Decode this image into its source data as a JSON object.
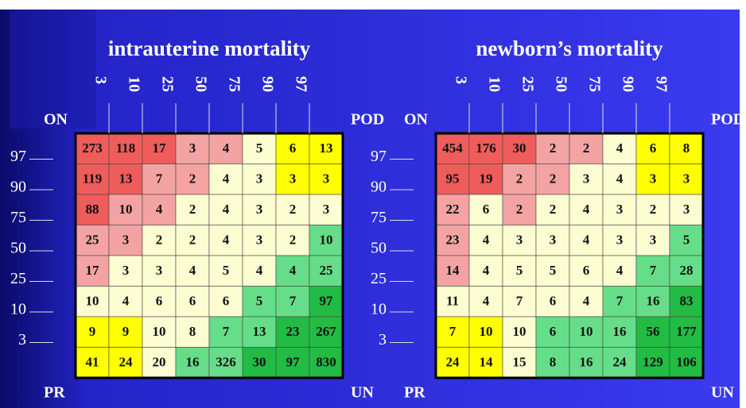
{
  "slide": {
    "panels": [
      {
        "title": "intrauterine mortality",
        "column_labels": [
          "3",
          "10",
          "25",
          "50",
          "75",
          "90",
          "97"
        ],
        "row_labels": [
          "97",
          "90",
          "75",
          "50",
          "25",
          "10",
          "3"
        ],
        "corner_labels": {
          "top_left": "ON",
          "top_right": "POD",
          "bottom_left": "PR",
          "bottom_right": "UN"
        },
        "rows": [
          [
            273,
            118,
            17,
            3,
            4,
            5,
            6,
            13
          ],
          [
            119,
            13,
            7,
            2,
            4,
            3,
            3,
            3
          ],
          [
            88,
            10,
            4,
            2,
            4,
            3,
            2,
            3
          ],
          [
            25,
            3,
            2,
            2,
            4,
            3,
            2,
            10
          ],
          [
            17,
            3,
            3,
            4,
            5,
            4,
            4,
            25
          ],
          [
            10,
            4,
            6,
            6,
            6,
            5,
            7,
            97
          ],
          [
            9,
            9,
            10,
            8,
            7,
            13,
            23,
            267
          ],
          [
            41,
            24,
            20,
            16,
            326,
            30,
            97,
            830
          ]
        ],
        "colors": [
          [
            "#ee5c5c",
            "#ee5c5c",
            "#ee5c5c",
            "#f4a3a3",
            "#f4a3a3",
            "#fdfdd2",
            "#ffff00",
            "#ffff00"
          ],
          [
            "#ee5c5c",
            "#ee5c5c",
            "#f4a3a3",
            "#f4a3a3",
            "#fdfdd2",
            "#fdfdd2",
            "#ffff00",
            "#ffff00"
          ],
          [
            "#ee5c5c",
            "#f4a3a3",
            "#f4a3a3",
            "#fdfdd2",
            "#fdfdd2",
            "#fdfdd2",
            "#fdfdd2",
            "#fdfdd2"
          ],
          [
            "#f4a3a3",
            "#f4a3a3",
            "#fdfdd2",
            "#fdfdd2",
            "#fdfdd2",
            "#fdfdd2",
            "#fdfdd2",
            "#66dd88"
          ],
          [
            "#f4a3a3",
            "#fdfdd2",
            "#fdfdd2",
            "#fdfdd2",
            "#fdfdd2",
            "#fdfdd2",
            "#66dd88",
            "#66dd88"
          ],
          [
            "#fdfdd2",
            "#fdfdd2",
            "#fdfdd2",
            "#fdfdd2",
            "#fdfdd2",
            "#66dd88",
            "#66dd88",
            "#22bb44"
          ],
          [
            "#ffff00",
            "#ffff00",
            "#fdfdd2",
            "#fdfdd2",
            "#66dd88",
            "#66dd88",
            "#22bb44",
            "#22bb44"
          ],
          [
            "#ffff00",
            "#ffff00",
            "#fdfdd2",
            "#66dd88",
            "#66dd88",
            "#22bb44",
            "#22bb44",
            "#22bb44"
          ]
        ]
      },
      {
        "title": "newborn’s mortality",
        "column_labels": [
          "3",
          "10",
          "25",
          "50",
          "75",
          "90",
          "97"
        ],
        "row_labels": [
          "97",
          "90",
          "75",
          "50",
          "25",
          "10",
          "3"
        ],
        "corner_labels": {
          "top_left": "ON",
          "top_right": "POD",
          "bottom_left": "PR",
          "bottom_right": "UN"
        },
        "rows": [
          [
            454,
            176,
            30,
            2,
            2,
            4,
            6,
            8
          ],
          [
            95,
            19,
            2,
            2,
            3,
            4,
            3,
            3
          ],
          [
            22,
            6,
            2,
            2,
            4,
            3,
            2,
            3
          ],
          [
            23,
            4,
            3,
            3,
            4,
            3,
            3,
            5
          ],
          [
            14,
            4,
            5,
            5,
            6,
            4,
            7,
            28
          ],
          [
            11,
            4,
            7,
            6,
            4,
            7,
            16,
            83
          ],
          [
            7,
            10,
            10,
            6,
            10,
            16,
            56,
            177
          ],
          [
            24,
            14,
            15,
            8,
            16,
            24,
            129,
            106
          ]
        ],
        "colors": [
          [
            "#ee5c5c",
            "#ee5c5c",
            "#ee5c5c",
            "#f4a3a3",
            "#f4a3a3",
            "#fdfdd2",
            "#ffff00",
            "#ffff00"
          ],
          [
            "#ee5c5c",
            "#ee5c5c",
            "#f4a3a3",
            "#f4a3a3",
            "#fdfdd2",
            "#fdfdd2",
            "#ffff00",
            "#ffff00"
          ],
          [
            "#f4a3a3",
            "#fdfdd2",
            "#f4a3a3",
            "#fdfdd2",
            "#fdfdd2",
            "#fdfdd2",
            "#fdfdd2",
            "#fdfdd2"
          ],
          [
            "#f4a3a3",
            "#fdfdd2",
            "#fdfdd2",
            "#fdfdd2",
            "#fdfdd2",
            "#fdfdd2",
            "#fdfdd2",
            "#66dd88"
          ],
          [
            "#f4a3a3",
            "#fdfdd2",
            "#fdfdd2",
            "#fdfdd2",
            "#fdfdd2",
            "#fdfdd2",
            "#66dd88",
            "#66dd88"
          ],
          [
            "#fdfdd2",
            "#fdfdd2",
            "#fdfdd2",
            "#fdfdd2",
            "#fdfdd2",
            "#66dd88",
            "#66dd88",
            "#22bb44"
          ],
          [
            "#ffff00",
            "#ffff00",
            "#fdfdd2",
            "#66dd88",
            "#66dd88",
            "#66dd88",
            "#22bb44",
            "#22bb44"
          ],
          [
            "#ffff00",
            "#ffff00",
            "#fdfdd2",
            "#66dd88",
            "#66dd88",
            "#66dd88",
            "#22bb44",
            "#22bb44"
          ]
        ]
      }
    ]
  }
}
